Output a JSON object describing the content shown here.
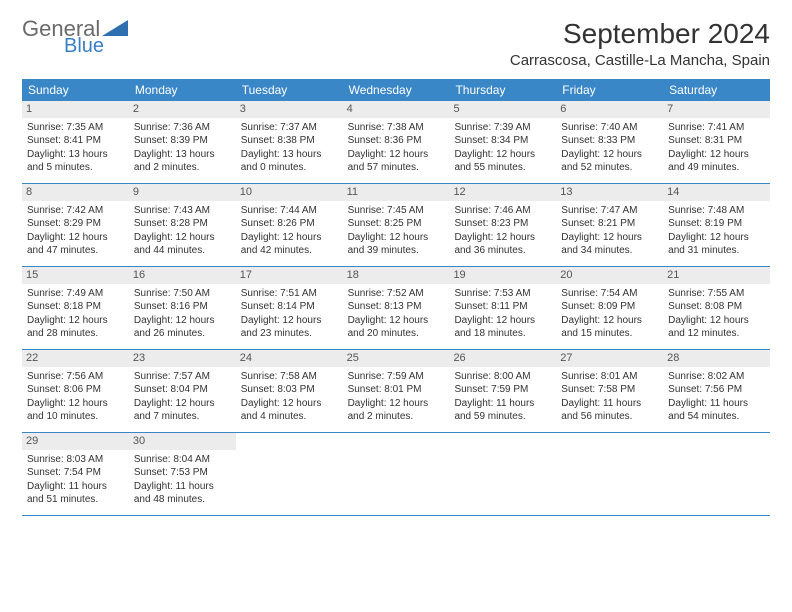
{
  "logo": {
    "top": "General",
    "bottom": "Blue"
  },
  "title": "September 2024",
  "location": "Carrascosa, Castille-La Mancha, Spain",
  "colors": {
    "header_bg": "#3a87c7",
    "header_text": "#ffffff",
    "row_divider": "#3a87c7",
    "daynum_bg": "#ececec",
    "logo_gray": "#6b6b6b",
    "logo_blue": "#3a7fc4"
  },
  "weekdays": [
    "Sunday",
    "Monday",
    "Tuesday",
    "Wednesday",
    "Thursday",
    "Friday",
    "Saturday"
  ],
  "weeks": [
    [
      {
        "n": "1",
        "sunrise": "Sunrise: 7:35 AM",
        "sunset": "Sunset: 8:41 PM",
        "day1": "Daylight: 13 hours",
        "day2": "and 5 minutes."
      },
      {
        "n": "2",
        "sunrise": "Sunrise: 7:36 AM",
        "sunset": "Sunset: 8:39 PM",
        "day1": "Daylight: 13 hours",
        "day2": "and 2 minutes."
      },
      {
        "n": "3",
        "sunrise": "Sunrise: 7:37 AM",
        "sunset": "Sunset: 8:38 PM",
        "day1": "Daylight: 13 hours",
        "day2": "and 0 minutes."
      },
      {
        "n": "4",
        "sunrise": "Sunrise: 7:38 AM",
        "sunset": "Sunset: 8:36 PM",
        "day1": "Daylight: 12 hours",
        "day2": "and 57 minutes."
      },
      {
        "n": "5",
        "sunrise": "Sunrise: 7:39 AM",
        "sunset": "Sunset: 8:34 PM",
        "day1": "Daylight: 12 hours",
        "day2": "and 55 minutes."
      },
      {
        "n": "6",
        "sunrise": "Sunrise: 7:40 AM",
        "sunset": "Sunset: 8:33 PM",
        "day1": "Daylight: 12 hours",
        "day2": "and 52 minutes."
      },
      {
        "n": "7",
        "sunrise": "Sunrise: 7:41 AM",
        "sunset": "Sunset: 8:31 PM",
        "day1": "Daylight: 12 hours",
        "day2": "and 49 minutes."
      }
    ],
    [
      {
        "n": "8",
        "sunrise": "Sunrise: 7:42 AM",
        "sunset": "Sunset: 8:29 PM",
        "day1": "Daylight: 12 hours",
        "day2": "and 47 minutes."
      },
      {
        "n": "9",
        "sunrise": "Sunrise: 7:43 AM",
        "sunset": "Sunset: 8:28 PM",
        "day1": "Daylight: 12 hours",
        "day2": "and 44 minutes."
      },
      {
        "n": "10",
        "sunrise": "Sunrise: 7:44 AM",
        "sunset": "Sunset: 8:26 PM",
        "day1": "Daylight: 12 hours",
        "day2": "and 42 minutes."
      },
      {
        "n": "11",
        "sunrise": "Sunrise: 7:45 AM",
        "sunset": "Sunset: 8:25 PM",
        "day1": "Daylight: 12 hours",
        "day2": "and 39 minutes."
      },
      {
        "n": "12",
        "sunrise": "Sunrise: 7:46 AM",
        "sunset": "Sunset: 8:23 PM",
        "day1": "Daylight: 12 hours",
        "day2": "and 36 minutes."
      },
      {
        "n": "13",
        "sunrise": "Sunrise: 7:47 AM",
        "sunset": "Sunset: 8:21 PM",
        "day1": "Daylight: 12 hours",
        "day2": "and 34 minutes."
      },
      {
        "n": "14",
        "sunrise": "Sunrise: 7:48 AM",
        "sunset": "Sunset: 8:19 PM",
        "day1": "Daylight: 12 hours",
        "day2": "and 31 minutes."
      }
    ],
    [
      {
        "n": "15",
        "sunrise": "Sunrise: 7:49 AM",
        "sunset": "Sunset: 8:18 PM",
        "day1": "Daylight: 12 hours",
        "day2": "and 28 minutes."
      },
      {
        "n": "16",
        "sunrise": "Sunrise: 7:50 AM",
        "sunset": "Sunset: 8:16 PM",
        "day1": "Daylight: 12 hours",
        "day2": "and 26 minutes."
      },
      {
        "n": "17",
        "sunrise": "Sunrise: 7:51 AM",
        "sunset": "Sunset: 8:14 PM",
        "day1": "Daylight: 12 hours",
        "day2": "and 23 minutes."
      },
      {
        "n": "18",
        "sunrise": "Sunrise: 7:52 AM",
        "sunset": "Sunset: 8:13 PM",
        "day1": "Daylight: 12 hours",
        "day2": "and 20 minutes."
      },
      {
        "n": "19",
        "sunrise": "Sunrise: 7:53 AM",
        "sunset": "Sunset: 8:11 PM",
        "day1": "Daylight: 12 hours",
        "day2": "and 18 minutes."
      },
      {
        "n": "20",
        "sunrise": "Sunrise: 7:54 AM",
        "sunset": "Sunset: 8:09 PM",
        "day1": "Daylight: 12 hours",
        "day2": "and 15 minutes."
      },
      {
        "n": "21",
        "sunrise": "Sunrise: 7:55 AM",
        "sunset": "Sunset: 8:08 PM",
        "day1": "Daylight: 12 hours",
        "day2": "and 12 minutes."
      }
    ],
    [
      {
        "n": "22",
        "sunrise": "Sunrise: 7:56 AM",
        "sunset": "Sunset: 8:06 PM",
        "day1": "Daylight: 12 hours",
        "day2": "and 10 minutes."
      },
      {
        "n": "23",
        "sunrise": "Sunrise: 7:57 AM",
        "sunset": "Sunset: 8:04 PM",
        "day1": "Daylight: 12 hours",
        "day2": "and 7 minutes."
      },
      {
        "n": "24",
        "sunrise": "Sunrise: 7:58 AM",
        "sunset": "Sunset: 8:03 PM",
        "day1": "Daylight: 12 hours",
        "day2": "and 4 minutes."
      },
      {
        "n": "25",
        "sunrise": "Sunrise: 7:59 AM",
        "sunset": "Sunset: 8:01 PM",
        "day1": "Daylight: 12 hours",
        "day2": "and 2 minutes."
      },
      {
        "n": "26",
        "sunrise": "Sunrise: 8:00 AM",
        "sunset": "Sunset: 7:59 PM",
        "day1": "Daylight: 11 hours",
        "day2": "and 59 minutes."
      },
      {
        "n": "27",
        "sunrise": "Sunrise: 8:01 AM",
        "sunset": "Sunset: 7:58 PM",
        "day1": "Daylight: 11 hours",
        "day2": "and 56 minutes."
      },
      {
        "n": "28",
        "sunrise": "Sunrise: 8:02 AM",
        "sunset": "Sunset: 7:56 PM",
        "day1": "Daylight: 11 hours",
        "day2": "and 54 minutes."
      }
    ],
    [
      {
        "n": "29",
        "sunrise": "Sunrise: 8:03 AM",
        "sunset": "Sunset: 7:54 PM",
        "day1": "Daylight: 11 hours",
        "day2": "and 51 minutes."
      },
      {
        "n": "30",
        "sunrise": "Sunrise: 8:04 AM",
        "sunset": "Sunset: 7:53 PM",
        "day1": "Daylight: 11 hours",
        "day2": "and 48 minutes."
      },
      null,
      null,
      null,
      null,
      null
    ]
  ]
}
